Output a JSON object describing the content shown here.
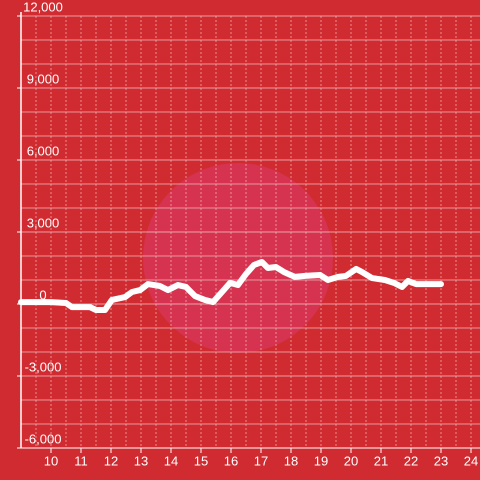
{
  "chart_data": {
    "type": "line",
    "x": [
      9.0,
      10.0,
      10.5,
      10.7,
      11.3,
      11.5,
      11.8,
      12.03,
      12.47,
      12.7,
      12.97,
      13.23,
      13.63,
      13.9,
      14.23,
      14.5,
      14.8,
      15.13,
      15.4,
      15.7,
      15.97,
      16.23,
      16.5,
      16.77,
      17.03,
      17.23,
      17.5,
      17.77,
      18.13,
      18.47,
      18.97,
      19.23,
      19.57,
      19.83,
      20.17,
      20.37,
      20.7,
      21.13,
      21.43,
      21.7,
      21.9,
      22.17,
      23.0
    ],
    "series": [
      {
        "color": "#ffffff",
        "values": [
          80,
          80,
          40,
          -130,
          -130,
          -250,
          -250,
          170,
          290,
          500,
          580,
          830,
          750,
          580,
          790,
          710,
          330,
          170,
          80,
          500,
          880,
          790,
          1250,
          1630,
          1750,
          1500,
          1540,
          1330,
          1130,
          1170,
          1210,
          1000,
          1130,
          1170,
          1460,
          1330,
          1080,
          1000,
          880,
          710,
          960,
          830,
          830
        ]
      }
    ],
    "xlim": [
      9,
      24.3
    ],
    "xticks": [
      10,
      11,
      12,
      13,
      14,
      15,
      16,
      17,
      18,
      19,
      20,
      21,
      22,
      23,
      24
    ],
    "ylim": [
      -6000,
      12000
    ],
    "yticks": [
      {
        "value": -6000,
        "label": "-6,000"
      },
      {
        "value": -3000,
        "label": "-3,000"
      },
      0,
      {
        "value": 3000,
        "label": "3,000"
      },
      {
        "value": 6000,
        "label": "6,000"
      },
      {
        "value": 9000,
        "label": "9,000"
      },
      {
        "value": 12000,
        "label": "12,000"
      }
    ],
    "grid": true,
    "background": "#d02b30"
  }
}
